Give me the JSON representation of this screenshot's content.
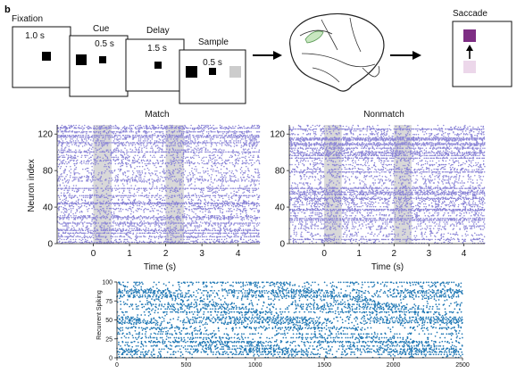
{
  "panel_label": "b",
  "task": {
    "screens": [
      {
        "label": "Fixation",
        "duration": "1.0 s"
      },
      {
        "label": "Cue",
        "duration": "0.5 s"
      },
      {
        "label": "Delay",
        "duration": "1.5 s"
      },
      {
        "label": "Sample",
        "duration": "0.5 s"
      }
    ],
    "saccade_label": "Saccade",
    "colors": {
      "highlight": "#c8e6c0",
      "saccade_target": "#7e2e84",
      "saccade_faded": "#ecd7ea",
      "sample_gray": "#cccccc"
    }
  },
  "chart_data": [
    {
      "type": "scatter",
      "subtype": "spike-raster",
      "title": "Match",
      "xlabel": "Time (s)",
      "ylabel": "Neuron index",
      "xticks": [
        "0",
        "1",
        "2",
        "3",
        "4"
      ],
      "yticks": [
        "0",
        "40",
        "80",
        "120"
      ],
      "xlim": [
        -1.0,
        4.6
      ],
      "ylim": [
        0,
        130
      ],
      "shaded_epochs": [
        [
          0.0,
          0.5
        ],
        [
          2.0,
          2.5
        ]
      ],
      "color": "#8a84d6",
      "grid": false
    },
    {
      "type": "scatter",
      "subtype": "spike-raster",
      "title": "Nonmatch",
      "xlabel": "Time (s)",
      "ylabel": "",
      "xticks": [
        "0",
        "1",
        "2",
        "3",
        "4"
      ],
      "yticks": [
        "0",
        "40",
        "80",
        "120"
      ],
      "xlim": [
        -1.0,
        4.6
      ],
      "ylim": [
        0,
        130
      ],
      "shaded_epochs": [
        [
          0.0,
          0.5
        ],
        [
          2.0,
          2.5
        ]
      ],
      "color": "#8a84d6",
      "grid": false
    },
    {
      "type": "scatter",
      "subtype": "spike-raster",
      "title": "",
      "xlabel": "",
      "ylabel": "Recurrent Spiking",
      "xticks": [
        "0",
        "500",
        "1000",
        "1500",
        "2000",
        "2500"
      ],
      "yticks": [
        "0",
        "25",
        "50",
        "75",
        "100"
      ],
      "xlim": [
        0,
        2500
      ],
      "ylim": [
        0,
        100
      ],
      "color": "#1f77b4",
      "grid": false
    }
  ]
}
